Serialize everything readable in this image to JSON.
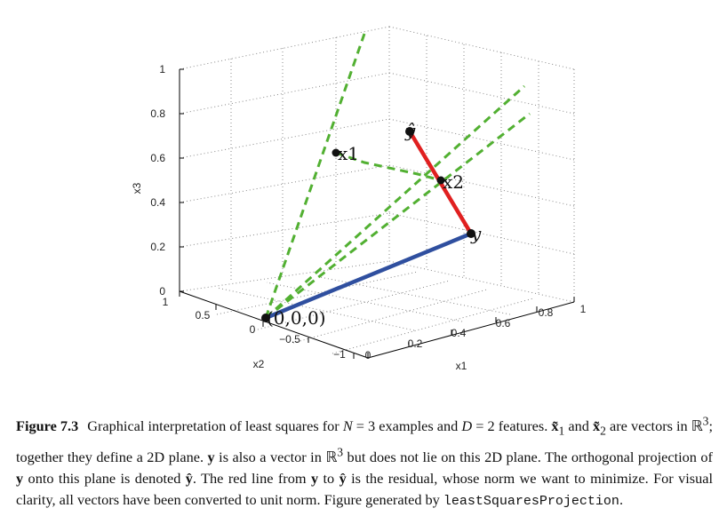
{
  "figure": {
    "axes": {
      "x1": {
        "label": "x1",
        "ticks": [
          "0",
          "0.2",
          "0.4",
          "0.6",
          "0.8",
          "1"
        ]
      },
      "x2": {
        "label": "x2",
        "ticks": [
          "1",
          "0.5",
          "0",
          "−0.5",
          "−1"
        ]
      },
      "x3": {
        "label": "x3",
        "ticks": [
          "0",
          "0.2",
          "0.4",
          "0.6",
          "0.8",
          "1"
        ]
      }
    },
    "points": {
      "origin": "(0,0,0)",
      "x1": "x1",
      "x2": "x2",
      "y": "y",
      "yhat": "ŷ"
    },
    "colors": {
      "residual": "#e02020",
      "y_vector": "#2f4f9f",
      "plane_lines": "#52b032",
      "points": "#111111"
    }
  },
  "caption": {
    "label": "Figure 7.3",
    "segments": [
      {
        "t": "Graphical interpretation of least squares for ",
        "s": ""
      },
      {
        "t": "N",
        "s": "it"
      },
      {
        "t": " = 3 examples and ",
        "s": ""
      },
      {
        "t": "D",
        "s": "it"
      },
      {
        "t": " = 2 features. ",
        "s": ""
      },
      {
        "t": "x̃",
        "s": "b"
      },
      {
        "t": "1",
        "s": "sub"
      },
      {
        "t": " and ",
        "s": ""
      },
      {
        "t": "x̃",
        "s": "b"
      },
      {
        "t": "2",
        "s": "sub"
      },
      {
        "t": " are vectors in ℝ",
        "s": ""
      },
      {
        "t": "3",
        "s": "sup"
      },
      {
        "t": "; together they define a 2D plane. ",
        "s": ""
      },
      {
        "t": "y",
        "s": "b"
      },
      {
        "t": " is also a vector in ℝ",
        "s": ""
      },
      {
        "t": "3",
        "s": "sup"
      },
      {
        "t": " but does not lie on this 2D plane. The orthogonal projection of ",
        "s": ""
      },
      {
        "t": "y",
        "s": "b"
      },
      {
        "t": " onto this plane is denoted ",
        "s": ""
      },
      {
        "t": "ŷ",
        "s": "b"
      },
      {
        "t": ". The red line from ",
        "s": ""
      },
      {
        "t": "y",
        "s": "b"
      },
      {
        "t": " to ",
        "s": ""
      },
      {
        "t": "ŷ",
        "s": "b"
      },
      {
        "t": " is the residual, whose norm we want to minimize. For visual clarity, all vectors have been converted to unit norm. Figure generated by ",
        "s": ""
      },
      {
        "t": "leastSquaresProjection",
        "s": "mono"
      },
      {
        "t": ".",
        "s": ""
      }
    ]
  }
}
